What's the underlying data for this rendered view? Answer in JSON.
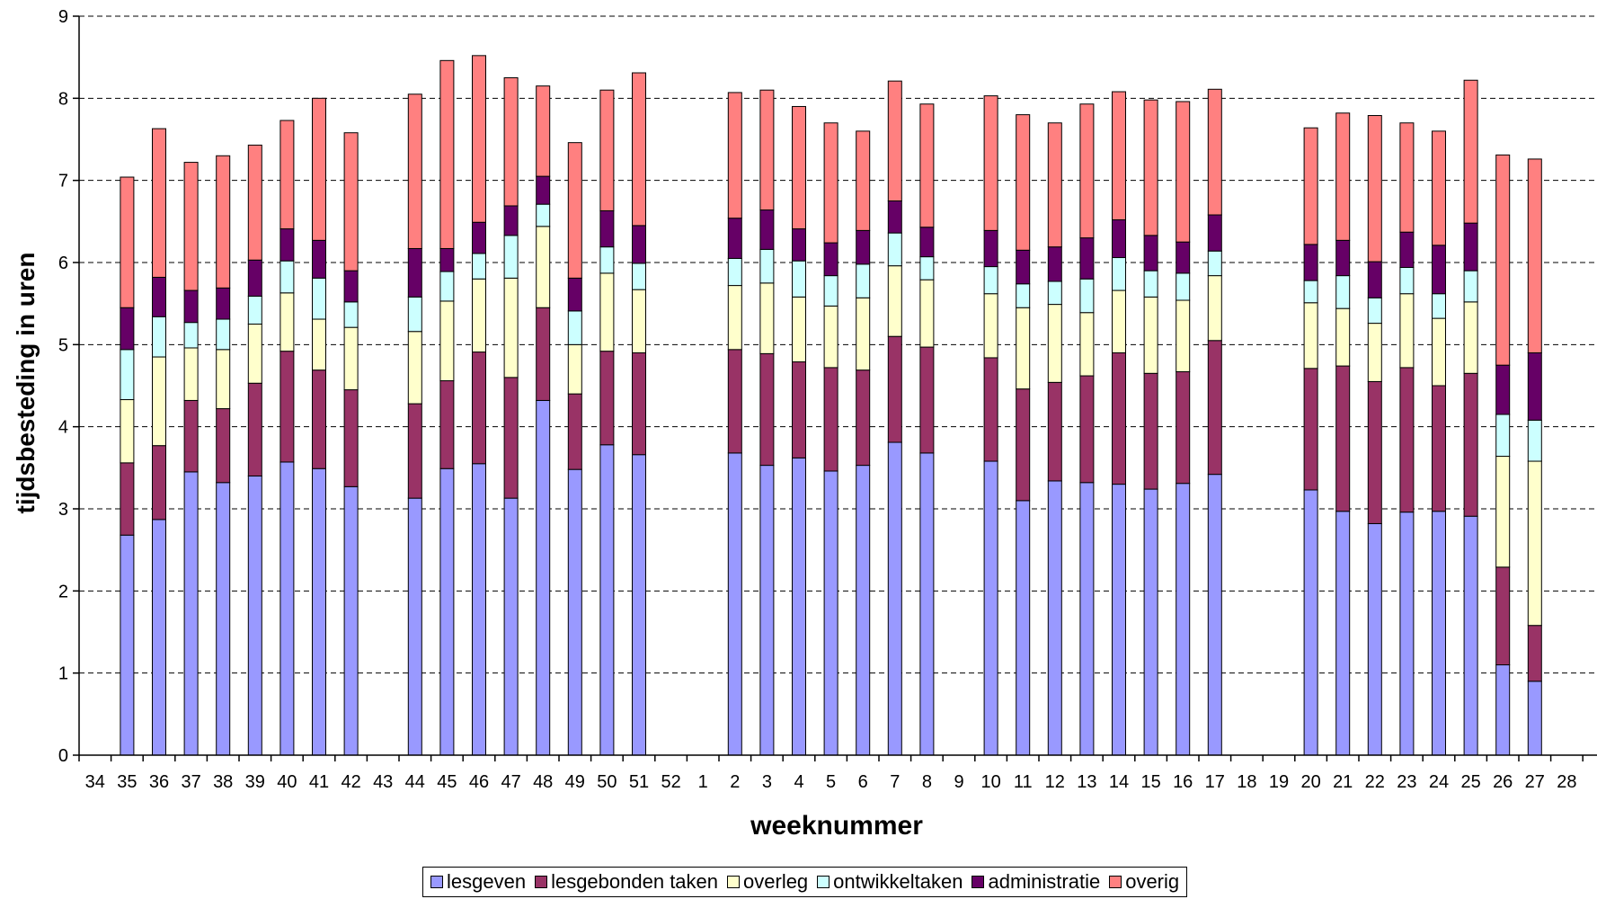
{
  "chart_data": {
    "type": "bar",
    "stacked": true,
    "xlabel": "weeknummer",
    "ylabel": "tijdsbesteding in uren",
    "ylim": [
      0,
      9
    ],
    "yticks": [
      0,
      1,
      2,
      3,
      4,
      5,
      6,
      7,
      8,
      9
    ],
    "grid": "dashed horizontal",
    "legend_position": "bottom",
    "categories": [
      "34",
      "35",
      "36",
      "37",
      "38",
      "39",
      "40",
      "41",
      "42",
      "43",
      "44",
      "45",
      "46",
      "47",
      "48",
      "49",
      "50",
      "51",
      "52",
      "1",
      "2",
      "3",
      "4",
      "5",
      "6",
      "7",
      "8",
      "9",
      "10",
      "11",
      "12",
      "13",
      "14",
      "15",
      "16",
      "17",
      "18",
      "19",
      "20",
      "21",
      "22",
      "23",
      "24",
      "25",
      "26",
      "27",
      "28"
    ],
    "series": [
      {
        "name": "lesgeven",
        "color": "#9999ff",
        "values": [
          null,
          2.68,
          2.87,
          3.45,
          3.32,
          3.4,
          3.57,
          3.49,
          3.27,
          null,
          3.13,
          3.49,
          3.55,
          3.13,
          4.32,
          3.48,
          3.78,
          3.66,
          null,
          null,
          3.68,
          3.53,
          3.62,
          3.46,
          3.53,
          3.81,
          3.68,
          null,
          3.58,
          3.1,
          3.34,
          3.32,
          3.3,
          3.24,
          3.31,
          3.42,
          null,
          null,
          3.23,
          2.97,
          2.82,
          2.96,
          2.97,
          2.91,
          1.1,
          0.9,
          null
        ]
      },
      {
        "name": "lesgebonden taken",
        "color": "#993366",
        "values": [
          null,
          0.88,
          0.9,
          0.87,
          0.9,
          1.13,
          1.35,
          1.2,
          1.18,
          null,
          1.15,
          1.07,
          1.36,
          1.47,
          1.13,
          0.92,
          1.14,
          1.24,
          null,
          null,
          1.26,
          1.36,
          1.17,
          1.26,
          1.16,
          1.29,
          1.29,
          null,
          1.26,
          1.36,
          1.2,
          1.3,
          1.6,
          1.41,
          1.36,
          1.63,
          null,
          null,
          1.48,
          1.77,
          1.73,
          1.76,
          1.53,
          1.74,
          1.19,
          0.68,
          null
        ]
      },
      {
        "name": "overleg",
        "color": "#ffffcc",
        "values": [
          null,
          0.77,
          1.08,
          0.64,
          0.72,
          0.72,
          0.71,
          0.62,
          0.76,
          null,
          0.88,
          0.97,
          0.89,
          1.21,
          0.99,
          0.6,
          0.95,
          0.77,
          null,
          null,
          0.78,
          0.86,
          0.79,
          0.75,
          0.88,
          0.86,
          0.82,
          null,
          0.78,
          0.99,
          0.95,
          0.77,
          0.76,
          0.93,
          0.87,
          0.79,
          null,
          null,
          0.8,
          0.7,
          0.71,
          0.9,
          0.82,
          0.87,
          1.35,
          2.0,
          null
        ]
      },
      {
        "name": "ontwikkeltaken",
        "color": "#ccffff",
        "values": [
          null,
          0.61,
          0.49,
          0.31,
          0.37,
          0.34,
          0.39,
          0.5,
          0.31,
          null,
          0.42,
          0.36,
          0.31,
          0.52,
          0.27,
          0.41,
          0.32,
          0.32,
          null,
          null,
          0.33,
          0.41,
          0.44,
          0.37,
          0.41,
          0.4,
          0.28,
          null,
          0.33,
          0.29,
          0.28,
          0.41,
          0.4,
          0.32,
          0.33,
          0.3,
          null,
          null,
          0.27,
          0.4,
          0.31,
          0.32,
          0.3,
          0.38,
          0.51,
          0.5,
          null
        ]
      },
      {
        "name": "administratie",
        "color": "#660066",
        "values": [
          null,
          0.51,
          0.48,
          0.39,
          0.38,
          0.44,
          0.39,
          0.46,
          0.38,
          null,
          0.59,
          0.28,
          0.38,
          0.36,
          0.34,
          0.4,
          0.44,
          0.46,
          null,
          null,
          0.49,
          0.48,
          0.39,
          0.4,
          0.41,
          0.39,
          0.36,
          null,
          0.44,
          0.41,
          0.42,
          0.5,
          0.46,
          0.43,
          0.38,
          0.44,
          null,
          null,
          0.44,
          0.43,
          0.44,
          0.43,
          0.59,
          0.58,
          0.6,
          0.82,
          null
        ]
      },
      {
        "name": "overig",
        "color": "#ff8080",
        "values": [
          null,
          1.59,
          1.81,
          1.56,
          1.61,
          1.4,
          1.32,
          1.73,
          1.68,
          null,
          1.88,
          2.29,
          2.03,
          1.56,
          1.1,
          1.65,
          1.47,
          1.86,
          null,
          null,
          1.53,
          1.46,
          1.49,
          1.46,
          1.21,
          1.46,
          1.5,
          null,
          1.64,
          1.65,
          1.51,
          1.63,
          1.56,
          1.65,
          1.71,
          1.53,
          null,
          null,
          1.42,
          1.55,
          1.78,
          1.33,
          1.39,
          1.74,
          2.56,
          2.36,
          null
        ]
      }
    ]
  }
}
